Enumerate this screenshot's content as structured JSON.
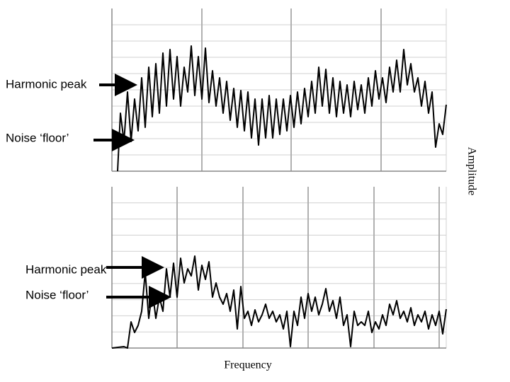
{
  "top_panel": {
    "harmonic_label": "Harmonic peak",
    "noise_label": "Noise ‘floor’"
  },
  "bottom_panel": {
    "harmonic_label": "Harmonic peak",
    "noise_label": "Noise ‘floor’"
  },
  "y_axis_label": "Amplitude",
  "x_axis_label": "Frequency"
}
